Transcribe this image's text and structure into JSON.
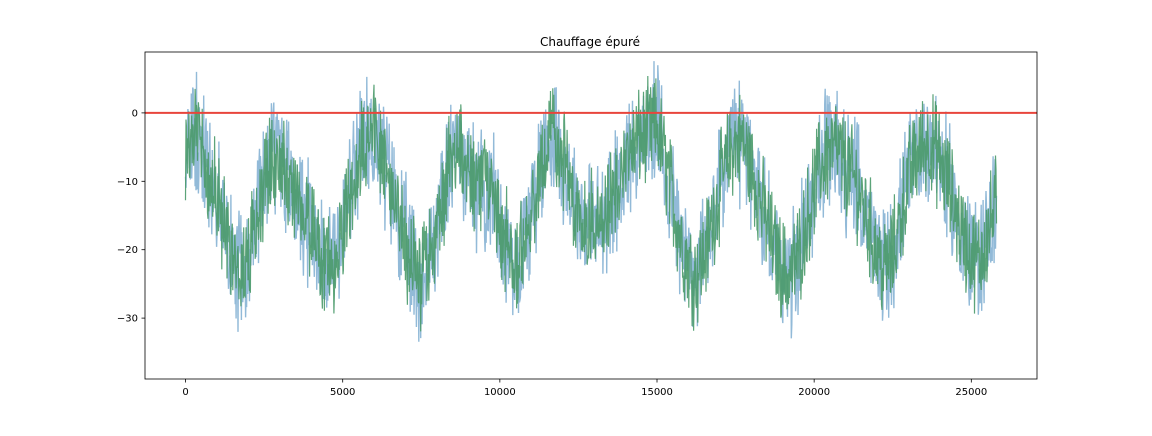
{
  "chart_data": {
    "type": "line",
    "title": "Chauffage épuré",
    "xlabel": "",
    "ylabel": "",
    "xlim": [
      -1290,
      27090
    ],
    "ylim": [
      -38.9,
      8.9
    ],
    "x_ticks": [
      0,
      5000,
      10000,
      15000,
      20000,
      25000
    ],
    "x_tick_labels": [
      "0",
      "5000",
      "10000",
      "15000",
      "20000",
      "25000"
    ],
    "y_ticks": [
      0,
      -10,
      -20,
      -30
    ],
    "y_tick_labels": [
      "0",
      "−10",
      "−20",
      "−30"
    ],
    "grid": false,
    "legend": "none",
    "reference_line": {
      "y": 0,
      "color": "#e8453c"
    },
    "series": [
      {
        "color": "#7faed1",
        "description_points_x": [
          0,
          300,
          600,
          900,
          1200,
          1500,
          1800,
          2100,
          2400,
          2700,
          3000,
          3300,
          3600,
          3900,
          4200,
          4500,
          4800,
          5100,
          5400,
          5700,
          6000,
          6300,
          6600,
          6900,
          7200,
          7500,
          7800,
          8100,
          8400,
          8700,
          9000,
          9300,
          9600,
          9900,
          10200,
          10500,
          10800,
          11100,
          11400,
          11700,
          12000,
          12300,
          12600,
          12900,
          13200,
          13500,
          13800,
          14100,
          14400,
          14700,
          15000,
          15300,
          15600,
          15900,
          16200,
          16500,
          16800,
          17100,
          17400,
          17700,
          18000,
          18300,
          18600,
          18900,
          19200,
          19500,
          19800,
          20100,
          20400,
          20700,
          21000,
          21300,
          21600,
          21900,
          22200,
          22500,
          22800,
          23100,
          23400,
          23700,
          24000,
          24300,
          24600,
          24900,
          25200,
          25500,
          25800
        ],
        "description_points_y": [
          -6,
          -3,
          -6,
          -11,
          -16,
          -21,
          -23,
          -19,
          -12,
          -6,
          -7,
          -10,
          -13,
          -16,
          -19,
          -22,
          -21,
          -15,
          -9,
          -4,
          -3,
          -7,
          -12,
          -17,
          -22,
          -24,
          -21,
          -14,
          -8,
          -5,
          -8,
          -12,
          -10,
          -14,
          -19,
          -22,
          -18,
          -12,
          -6,
          -2,
          -7,
          -12,
          -15,
          -16,
          -17,
          -14,
          -10,
          -6,
          -4,
          -3,
          -2,
          -8,
          -15,
          -21,
          -24,
          -21,
          -15,
          -9,
          -5,
          -4,
          -8,
          -13,
          -18,
          -22,
          -24,
          -21,
          -15,
          -9,
          -6,
          -5,
          -8,
          -10,
          -14,
          -19,
          -23,
          -21,
          -14,
          -8,
          -5,
          -4,
          -7,
          -11,
          -16,
          -20,
          -22,
          -18,
          -13
        ]
      },
      {
        "color": "#4a9a6a",
        "description_points_x": [
          0,
          300,
          600,
          900,
          1200,
          1500,
          1800,
          2100,
          2400,
          2700,
          3000,
          3300,
          3600,
          3900,
          4200,
          4500,
          4800,
          5100,
          5400,
          5700,
          6000,
          6300,
          6600,
          6900,
          7200,
          7500,
          7800,
          8100,
          8400,
          8700,
          9000,
          9300,
          9600,
          9900,
          10200,
          10500,
          10800,
          11100,
          11400,
          11700,
          12000,
          12300,
          12600,
          12900,
          13200,
          13500,
          13800,
          14100,
          14400,
          14700,
          15000,
          15300,
          15600,
          15900,
          16200,
          16500,
          16800,
          17100,
          17400,
          17700,
          18000,
          18300,
          18600,
          18900,
          19200,
          19500,
          19800,
          20100,
          20400,
          20700,
          21000,
          21300,
          21600,
          21900,
          22200,
          22500,
          22800,
          23100,
          23400,
          23700,
          24000,
          24300,
          24600,
          24900,
          25200,
          25500,
          25800
        ],
        "description_points_y": [
          -6,
          -3,
          -6,
          -11,
          -16,
          -21,
          -23,
          -19,
          -12,
          -6,
          -7,
          -10,
          -13,
          -16,
          -19,
          -22,
          -21,
          -15,
          -9,
          -4,
          -3,
          -7,
          -12,
          -17,
          -22,
          -24,
          -21,
          -14,
          -8,
          -5,
          -8,
          -12,
          -10,
          -14,
          -19,
          -22,
          -18,
          -12,
          -6,
          -2,
          -7,
          -12,
          -15,
          -16,
          -17,
          -14,
          -10,
          -6,
          -4,
          -3,
          -2,
          -8,
          -15,
          -21,
          -24,
          -21,
          -15,
          -9,
          -5,
          -4,
          -8,
          -13,
          -18,
          -22,
          -24,
          -21,
          -15,
          -9,
          -6,
          -5,
          -8,
          -10,
          -14,
          -19,
          -23,
          -21,
          -14,
          -8,
          -5,
          -4,
          -7,
          -11,
          -16,
          -20,
          -22,
          -18,
          -13
        ]
      }
    ]
  }
}
